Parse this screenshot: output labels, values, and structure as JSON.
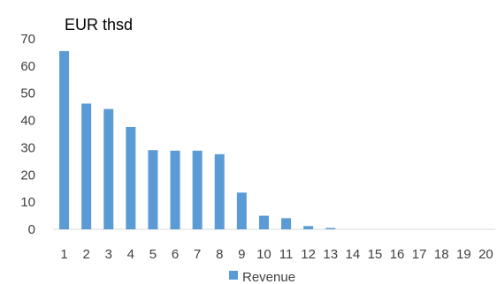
{
  "chart_data": {
    "type": "bar",
    "title": "",
    "ylabel": "EUR thsd",
    "xlabel": "",
    "categories": [
      "1",
      "2",
      "3",
      "4",
      "5",
      "6",
      "7",
      "8",
      "9",
      "10",
      "11",
      "12",
      "13",
      "14",
      "15",
      "16",
      "17",
      "18",
      "19",
      "20"
    ],
    "series": [
      {
        "name": "Revenue",
        "values": [
          65.5,
          46.2,
          44.2,
          37.6,
          29.1,
          28.9,
          28.9,
          27.6,
          13.5,
          5.0,
          4.1,
          1.2,
          0.5,
          0,
          0,
          0,
          0,
          0,
          0,
          0
        ],
        "color": "#5b9bd5"
      }
    ],
    "ylim": [
      0,
      70
    ],
    "yticks": [
      0,
      10,
      20,
      30,
      40,
      50,
      60,
      70
    ],
    "grid": false,
    "legend": "bottom"
  }
}
